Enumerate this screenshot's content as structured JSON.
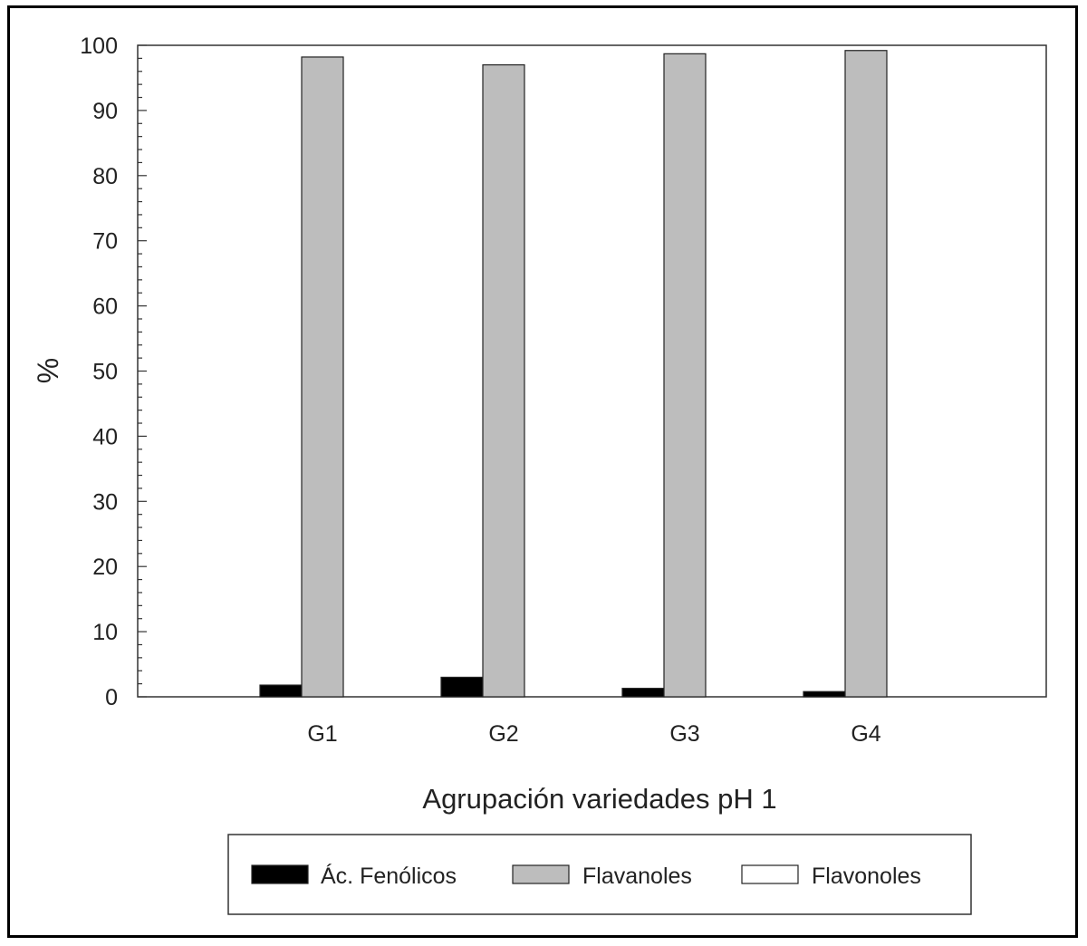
{
  "chart_data": {
    "type": "bar",
    "xlabel": "Agrupación variedades pH 1",
    "ylabel": "%",
    "ylim": [
      0,
      100
    ],
    "yticks": [
      0,
      10,
      20,
      30,
      40,
      50,
      60,
      70,
      80,
      90,
      100
    ],
    "categories": [
      "G1",
      "G2",
      "G3",
      "G4"
    ],
    "series": [
      {
        "name": "Ác. Fenólicos",
        "color": "#000000",
        "values": [
          1.8,
          3.0,
          1.3,
          0.8
        ]
      },
      {
        "name": "Flavanoles",
        "color": "#bdbdbd",
        "values": [
          98.2,
          97.0,
          98.7,
          99.2
        ]
      },
      {
        "name": "Flavonoles",
        "color": "#ffffff",
        "values": [
          0,
          0,
          0,
          0
        ]
      }
    ],
    "legend_position": "bottom",
    "grid": false
  }
}
